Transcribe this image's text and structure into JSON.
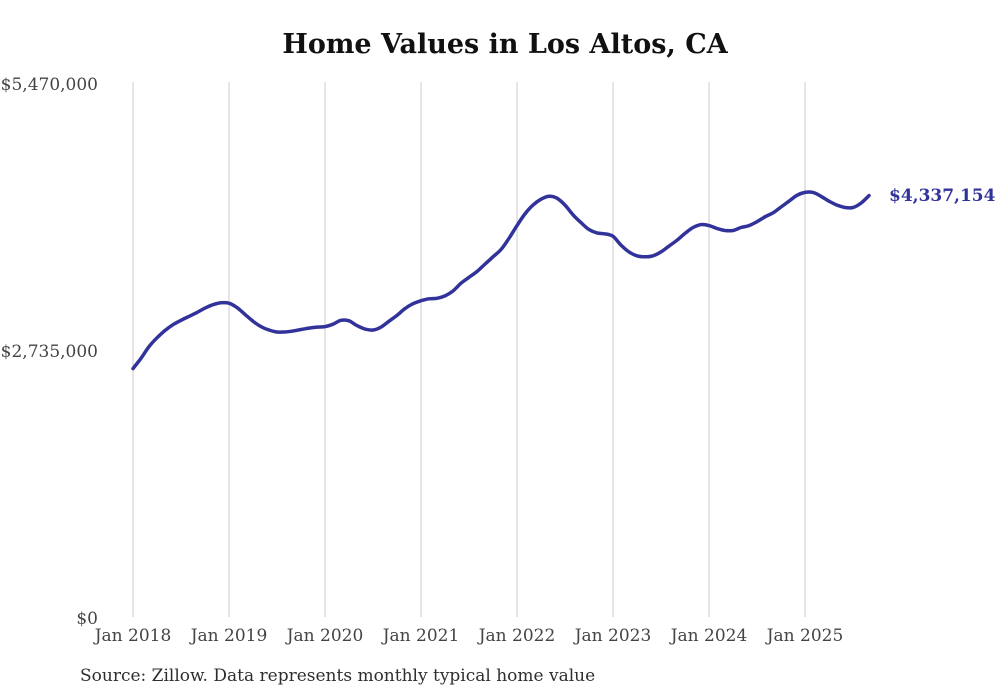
{
  "title": "Home Values in Los Altos, CA",
  "source_note": "Source: Zillow. Data represents monthly typical home value",
  "chart_data": {
    "type": "line",
    "title": "Home Values in Los Altos, CA",
    "unit": "USD",
    "frequency": "monthly",
    "start_month": "2018-01",
    "end_month": "2025-09",
    "x_tick_labels": [
      "Jan 2018",
      "Jan 2019",
      "Jan 2020",
      "Jan 2021",
      "Jan 2022",
      "Jan 2023",
      "Jan 2024",
      "Jan 2025"
    ],
    "y_ticks": [
      {
        "label": "$0",
        "value": 0
      },
      {
        "label": "$2,735,000",
        "value": 2735000
      },
      {
        "label": "$5,470,000",
        "value": 5470000
      }
    ],
    "ylim": [
      0,
      5470000
    ],
    "grid": "vertical-only",
    "legend": "none",
    "line_color": "#32329b",
    "gridline_color": "#cbcbcb",
    "end_label": "$4,337,154",
    "end_value": 4337154,
    "series": [
      {
        "name": "Typical home value",
        "values": [
          2565000,
          2670000,
          2790000,
          2880000,
          2955000,
          3015000,
          3060000,
          3100000,
          3140000,
          3185000,
          3220000,
          3240000,
          3235000,
          3190000,
          3120000,
          3050000,
          2995000,
          2960000,
          2940000,
          2940000,
          2950000,
          2965000,
          2980000,
          2990000,
          2995000,
          3020000,
          3060000,
          3055000,
          3005000,
          2970000,
          2960000,
          2990000,
          3050000,
          3110000,
          3180000,
          3230000,
          3260000,
          3280000,
          3285000,
          3310000,
          3360000,
          3440000,
          3500000,
          3560000,
          3635000,
          3710000,
          3785000,
          3900000,
          4030000,
          4150000,
          4240000,
          4300000,
          4330000,
          4310000,
          4240000,
          4140000,
          4060000,
          3990000,
          3955000,
          3945000,
          3920000,
          3830000,
          3760000,
          3720000,
          3710000,
          3720000,
          3760000,
          3820000,
          3880000,
          3950000,
          4010000,
          4040000,
          4030000,
          4000000,
          3980000,
          3980000,
          4010000,
          4030000,
          4070000,
          4120000,
          4160000,
          4220000,
          4280000,
          4340000,
          4370000,
          4370000,
          4330000,
          4280000,
          4240000,
          4215000,
          4215000,
          4260000,
          4337154
        ]
      }
    ]
  }
}
